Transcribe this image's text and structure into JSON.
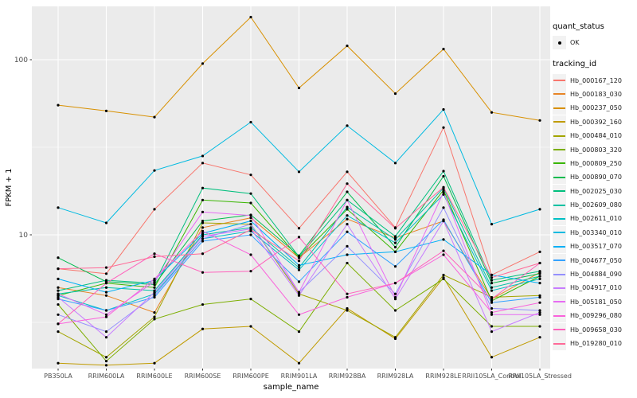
{
  "figure": {
    "background": "#FFFFFF",
    "panel_background": "#EBEBEB",
    "grid_color": "#FFFFFF",
    "tick_label_color": "#4D4D4D",
    "point_color": "#000000"
  },
  "legend": {
    "quant_status_title": "quant_status",
    "quant_status_entries": [
      {
        "label": "OK",
        "glyph": "point"
      }
    ],
    "tracking_id_title": "tracking_id"
  },
  "chart_data": {
    "type": "line",
    "title": "",
    "xlabel": "sample_name",
    "ylabel": "FPKM + 1",
    "y_scale": "log10",
    "ylim": [
      1.72,
      202
    ],
    "y_major_ticks": [
      10,
      100
    ],
    "y_minor_gridlines": [
      3.162,
      31.623
    ],
    "grid": true,
    "legend_position": "right",
    "marker": "black-point",
    "categories": [
      "PB350LA",
      "RRIM600LA",
      "RRIM600LE",
      "RRIM600SE",
      "RRIM600PE",
      "RRIM901LA",
      "RRIM928BA",
      "RRIM928LA",
      "RRIM928LE",
      "RRII105LA_Control",
      "RRII105LA_Stressed"
    ],
    "series": [
      {
        "name": "Hb_000167_120",
        "color": "#F8766D",
        "values": [
          6.4,
          6.0,
          14.0,
          25.7,
          22.0,
          10.9,
          22.9,
          11.0,
          41.0,
          5.9,
          8.0
        ]
      },
      {
        "name": "Hb_000183_030",
        "color": "#E88526",
        "values": [
          5.0,
          4.5,
          3.6,
          11.0,
          12.5,
          7.4,
          12.3,
          9.6,
          12.0,
          4.3,
          6.1
        ]
      },
      {
        "name": "Hb_000237_050",
        "color": "#D89000",
        "values": [
          55,
          51,
          47,
          95,
          175,
          69,
          120,
          64,
          115,
          50,
          45
        ]
      },
      {
        "name": "Hb_000392_160",
        "color": "#C09B00",
        "values": [
          1.85,
          1.8,
          1.85,
          2.9,
          3.0,
          1.85,
          3.8,
          2.55,
          5.7,
          2.0,
          2.6
        ]
      },
      {
        "name": "Hb_000484_010",
        "color": "#A3A500",
        "values": [
          2.8,
          2.0,
          3.4,
          11.7,
          11.5,
          4.6,
          3.7,
          2.6,
          5.9,
          4.4,
          4.5
        ]
      },
      {
        "name": "Hb_000803_320",
        "color": "#7CAE00",
        "values": [
          4.0,
          1.9,
          3.3,
          4.0,
          4.3,
          2.8,
          6.9,
          3.7,
          5.6,
          3.0,
          3.0
        ]
      },
      {
        "name": "Hb_000809_250",
        "color": "#39B600",
        "values": [
          4.5,
          5.3,
          5.0,
          15.8,
          15.2,
          7.4,
          14.0,
          8.0,
          18.0,
          4.2,
          5.8
        ]
      },
      {
        "name": "Hb_000890_070",
        "color": "#00BB4E",
        "values": [
          7.4,
          5.4,
          5.2,
          12.0,
          13.0,
          7.6,
          17.6,
          8.5,
          21.6,
          5.3,
          6.0
        ]
      },
      {
        "name": "Hb_002025_030",
        "color": "#00BF7D",
        "values": [
          4.8,
          5.5,
          5.3,
          18.5,
          17.2,
          7.5,
          15.8,
          9.8,
          23.1,
          5.5,
          6.2
        ]
      },
      {
        "name": "Hb_002609_080",
        "color": "#00C1A3",
        "values": [
          4.6,
          5.0,
          4.8,
          10.0,
          11.0,
          6.5,
          14.4,
          9.4,
          18.5,
          5.0,
          5.8
        ]
      },
      {
        "name": "Hb_002611_010",
        "color": "#00BFC4",
        "values": [
          4.5,
          3.7,
          4.6,
          9.5,
          10.5,
          6.3,
          12.9,
          9.0,
          17.0,
          4.8,
          5.6
        ]
      },
      {
        "name": "Hb_003340_010",
        "color": "#00BAE0",
        "values": [
          14.3,
          11.7,
          23.3,
          28.2,
          44.0,
          22.9,
          42.0,
          25.7,
          52.0,
          11.5,
          14.0
        ]
      },
      {
        "name": "Hb_003517_070",
        "color": "#00B0F6",
        "values": [
          5.6,
          4.7,
          5.5,
          10.2,
          12.0,
          6.7,
          7.7,
          8.0,
          9.4,
          5.9,
          5.3
        ]
      },
      {
        "name": "Hb_004677_050",
        "color": "#35A2FF",
        "values": [
          4.3,
          3.7,
          4.4,
          9.2,
          10.0,
          5.4,
          10.4,
          6.6,
          12.2,
          4.1,
          4.4
        ]
      },
      {
        "name": "Hb_004884_090",
        "color": "#9590FF",
        "values": [
          3.5,
          2.8,
          4.5,
          9.5,
          11.5,
          4.7,
          8.6,
          4.6,
          14.3,
          3.8,
          3.7
        ]
      },
      {
        "name": "Hb_004917_010",
        "color": "#C77CFF",
        "values": [
          4.4,
          2.6,
          4.7,
          9.8,
          10.8,
          4.5,
          11.5,
          4.3,
          12.0,
          2.8,
          3.6
        ]
      },
      {
        "name": "Hb_005181_050",
        "color": "#E76BF3",
        "values": [
          4.6,
          3.5,
          5.4,
          13.5,
          12.9,
          4.7,
          15.8,
          4.4,
          17.5,
          3.5,
          3.5
        ]
      },
      {
        "name": "Hb_009296_080",
        "color": "#FA62DB",
        "values": [
          3.1,
          3.4,
          5.6,
          10.5,
          7.7,
          3.5,
          4.4,
          5.3,
          7.7,
          3.6,
          4.1
        ]
      },
      {
        "name": "Hb_009658_030",
        "color": "#FF62BC",
        "values": [
          3.1,
          5.3,
          7.8,
          6.1,
          6.2,
          9.7,
          4.6,
          5.3,
          8.1,
          4.3,
          6.9
        ]
      },
      {
        "name": "Hb_019280_010",
        "color": "#FF6A98",
        "values": [
          6.4,
          6.5,
          7.5,
          7.8,
          10.7,
          7.1,
          19.6,
          10.9,
          18.7,
          5.7,
          6.9
        ]
      }
    ]
  }
}
